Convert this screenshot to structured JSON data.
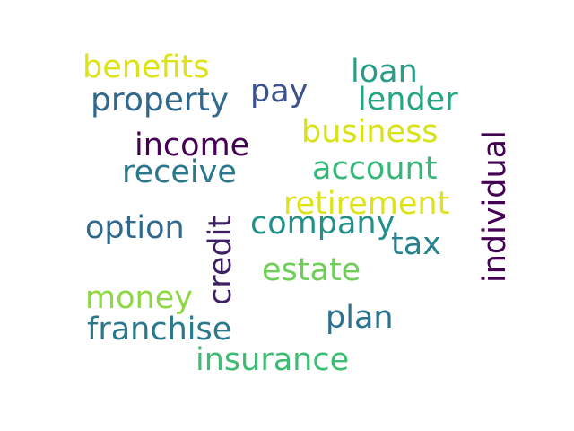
{
  "words": [
    {
      "text": "benefits",
      "color": "#dde318"
    },
    {
      "text": "loan",
      "color": "#2a9d8a"
    },
    {
      "text": "pay",
      "color": "#3b528b"
    },
    {
      "text": "property",
      "color": "#31688e"
    },
    {
      "text": "lender",
      "color": "#22a785"
    },
    {
      "text": "individual",
      "color": "#440154"
    },
    {
      "text": "business",
      "color": "#d8e219"
    },
    {
      "text": "income",
      "color": "#440154"
    },
    {
      "text": "account",
      "color": "#35b779"
    },
    {
      "text": "receive",
      "color": "#2a788e"
    },
    {
      "text": "retirement",
      "color": "#dde318"
    },
    {
      "text": "credit",
      "color": "#3e1f64"
    },
    {
      "text": "option",
      "color": "#31688e"
    },
    {
      "text": "company",
      "color": "#21918c"
    },
    {
      "text": "tax",
      "color": "#26828e"
    },
    {
      "text": "estate",
      "color": "#6ece58"
    },
    {
      "text": "money",
      "color": "#8fd744"
    },
    {
      "text": "plan",
      "color": "#2c728e"
    },
    {
      "text": "franchise",
      "color": "#2a788e"
    },
    {
      "text": "insurance",
      "color": "#3fbc73"
    }
  ]
}
